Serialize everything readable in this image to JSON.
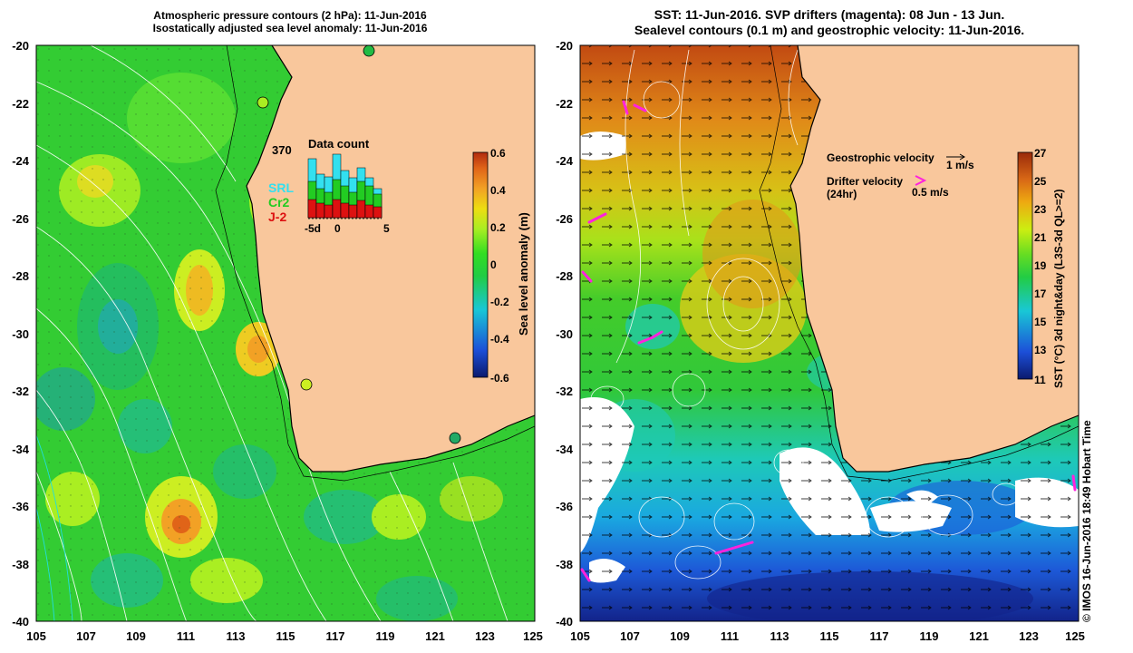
{
  "left_panel": {
    "title_line1": "Atmospheric pressure contours (2 hPa): 11-Jun-2016",
    "title_line2": "Isostatically adjusted sea level anomaly: 11-Jun-2016",
    "y_ticks": [
      "-20",
      "-22",
      "-24",
      "-26",
      "-28",
      "-30",
      "-32",
      "-34",
      "-36",
      "-38",
      "-40"
    ],
    "x_ticks": [
      "105",
      "107",
      "109",
      "111",
      "113",
      "115",
      "117",
      "119",
      "121",
      "123",
      "125"
    ],
    "colorbar": {
      "label": "Sea level anomaly (m)",
      "ticks": [
        "0.6",
        "0.4",
        "0.2",
        "0",
        "-0.2",
        "-0.4",
        "-0.6"
      ]
    },
    "inset": {
      "count_label": "370",
      "title": "Data count",
      "x_labels": [
        "-5d",
        "0",
        "5"
      ],
      "legend": [
        {
          "label": "SRL",
          "color": "#33e0ef"
        },
        {
          "label": "Cr2",
          "color": "#22cc22"
        },
        {
          "label": "J-2",
          "color": "#dd1111"
        }
      ]
    }
  },
  "right_panel": {
    "title_line1": "SST: 11-Jun-2016. SVP drifters (magenta): 08 Jun - 13 Jun.",
    "title_line2": "Sealevel contours (0.1 m) and geostrophic velocity: 11-Jun-2016.",
    "y_ticks": [
      "-20",
      "-22",
      "-24",
      "-26",
      "-28",
      "-30",
      "-32",
      "-34",
      "-36",
      "-38",
      "-40"
    ],
    "x_ticks": [
      "105",
      "107",
      "109",
      "111",
      "113",
      "115",
      "117",
      "119",
      "121",
      "123",
      "125"
    ],
    "colorbar": {
      "label": "SST (°C) 3d night&day (L3S-3d QL>=2)",
      "ticks": [
        "27",
        "25",
        "23",
        "21",
        "19",
        "17",
        "15",
        "13",
        "11"
      ]
    },
    "legend": {
      "geo_label": "Geostrophic velocity",
      "geo_scale": "1 m/s",
      "drifter_label": "Drifter velocity",
      "drifter_sub": "(24hr)",
      "drifter_scale": "0.5 m/s"
    }
  },
  "copyright": "© IMOS 16-Jun-2016 18:49 Hobart Time",
  "colors": {
    "land": "#f9c79c",
    "sla_cmap": [
      "#0b1a6e",
      "#1c4fd8",
      "#19c7d6",
      "#22cc44",
      "#33dd22",
      "#aaee22",
      "#eedd11",
      "#f2a125",
      "#e06418",
      "#b22a0e"
    ],
    "sst_cmap": [
      "#0b1a6e",
      "#1c4fd8",
      "#19c7d6",
      "#22cc44",
      "#66dd22",
      "#ccee11",
      "#eeaa11",
      "#d86816",
      "#9a2a0a"
    ],
    "drifter": "#ff22dd"
  }
}
